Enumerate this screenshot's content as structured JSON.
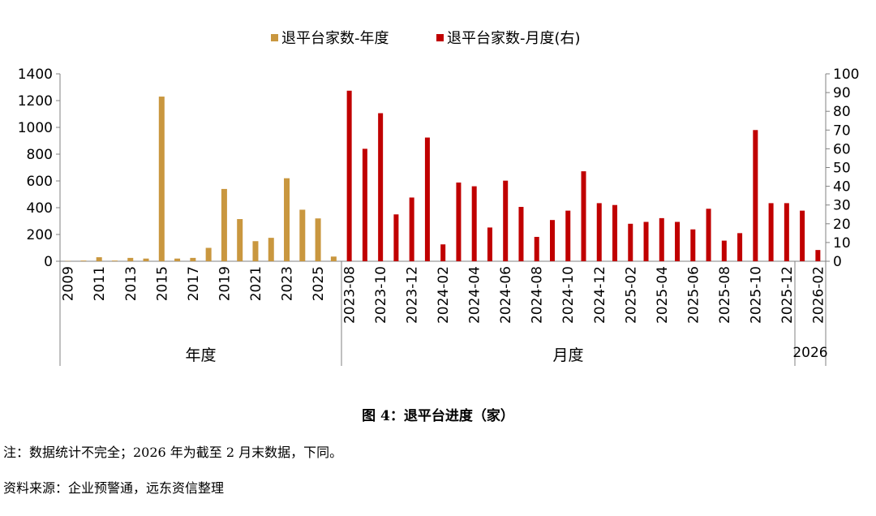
{
  "caption": "图 4：退平台进度（家）",
  "note": "注：数据统计不完全；2026 年为截至 2 月末数据，下同。",
  "source": "资料来源：企业预警通，远东资信整理",
  "chart_data": {
    "type": "bar",
    "legend": [
      {
        "name": "退平台家数-年度",
        "color": "#c9973f"
      },
      {
        "name": "退平台家数-月度(右)",
        "color": "#c00000"
      }
    ],
    "legend_position": "top",
    "grid": false,
    "y_left": {
      "min": 0,
      "max": 1400,
      "ticks": [
        0,
        200,
        400,
        600,
        800,
        1000,
        1200,
        1400
      ]
    },
    "y_right": {
      "min": 0,
      "max": 100,
      "ticks": [
        0,
        10,
        20,
        30,
        40,
        50,
        60,
        70,
        80,
        90,
        100
      ]
    },
    "annual": {
      "name": "退平台家数-年度",
      "color": "#c9973f",
      "categories": [
        "2009",
        "2010",
        "2011",
        "2012",
        "2013",
        "2014",
        "2015",
        "2016",
        "2017",
        "2018",
        "2019",
        "2020",
        "2021",
        "2022",
        "2023",
        "2024",
        "2025",
        "2026"
      ],
      "tick_labels": [
        "2009",
        "2011",
        "2013",
        "2015",
        "2017",
        "2019",
        "2021",
        "2023",
        "2025"
      ],
      "values": [
        2,
        5,
        30,
        5,
        25,
        20,
        1230,
        20,
        25,
        100,
        540,
        315,
        150,
        175,
        620,
        385,
        320,
        35
      ]
    },
    "monthly": {
      "name": "退平台家数-月度(右)",
      "color": "#c00000",
      "categories": [
        "2023-08",
        "2023-09",
        "2023-10",
        "2023-11",
        "2023-12",
        "2024-01",
        "2024-02",
        "2024-03",
        "2024-04",
        "2024-05",
        "2024-06",
        "2024-07",
        "2024-08",
        "2024-09",
        "2024-10",
        "2024-11",
        "2024-12",
        "2025-01",
        "2025-02",
        "2025-03",
        "2025-04",
        "2025-05",
        "2025-06",
        "2025-07",
        "2025-08",
        "2025-09",
        "2025-10",
        "2025-11",
        "2025-12",
        "2026-01",
        "2026-02"
      ],
      "tick_labels": [
        "2023-08",
        "2023-10",
        "2023-12",
        "2024-02",
        "2024-04",
        "2024-06",
        "2024-08",
        "2024-10",
        "2024-12",
        "2025-02",
        "2025-04",
        "2025-06",
        "2025-08",
        "2025-10",
        "2025-12",
        "2026-02"
      ],
      "values": [
        91,
        60,
        79,
        25,
        34,
        66,
        9,
        42,
        40,
        18,
        43,
        29,
        13,
        22,
        27,
        48,
        31,
        30,
        20,
        21,
        23,
        21,
        17,
        28,
        11,
        15,
        70,
        31,
        31,
        27,
        6
      ]
    },
    "group_labels": [
      "年度",
      "月度",
      "2026"
    ]
  }
}
